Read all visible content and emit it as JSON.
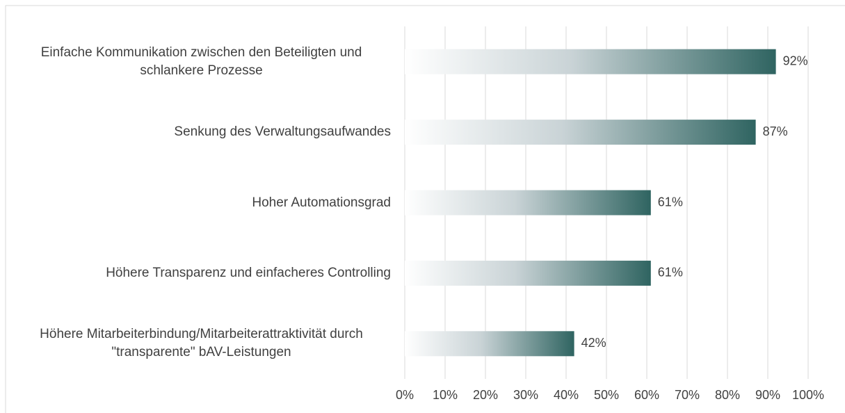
{
  "chart_data": {
    "type": "bar",
    "orientation": "horizontal",
    "categories": [
      "Einfache Kommunikation zwischen den Beteiligten und schlankere Prozesse",
      "Senkung des Verwaltungsaufwandes",
      "Hoher Automationsgrad",
      "Höhere Transparenz und einfacheres Controlling",
      "Höhere Mitarbeiterbindung/Mitarbeiterattraktivität durch \"transparente\" bAV-Leistungen"
    ],
    "values": [
      92,
      87,
      61,
      61,
      42
    ],
    "value_labels": [
      "92%",
      "87%",
      "61%",
      "61%",
      "42%"
    ],
    "color": "#2f6461",
    "xlim": [
      0,
      100
    ],
    "xticks": [
      {
        "value": 0,
        "label": "0%"
      },
      {
        "value": 10,
        "label": "10%"
      },
      {
        "value": 20,
        "label": "20%"
      },
      {
        "value": 30,
        "label": "30%"
      },
      {
        "value": 40,
        "label": "40%"
      },
      {
        "value": 50,
        "label": "50%"
      },
      {
        "value": 60,
        "label": "60%"
      },
      {
        "value": 70,
        "label": "70%"
      },
      {
        "value": 80,
        "label": "80%"
      },
      {
        "value": 90,
        "label": "90%"
      },
      {
        "value": 100,
        "label": "100%"
      }
    ],
    "grid": true
  }
}
